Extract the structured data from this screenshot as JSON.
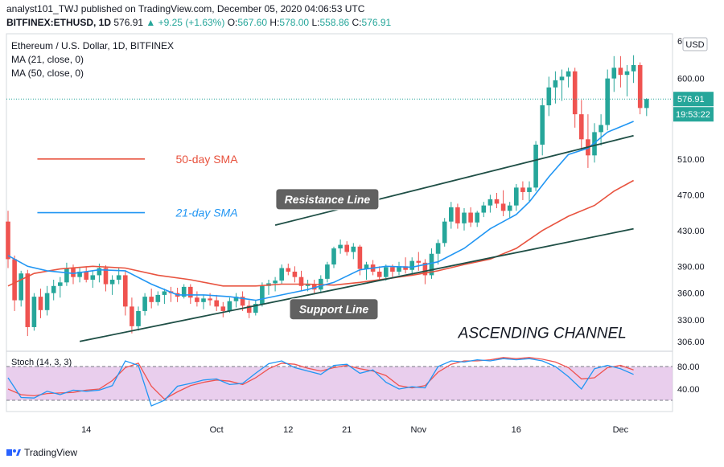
{
  "header": {
    "publisher_line": "analyst101_TWJ published on TradingView.com, December 05, 2020 04:06:53 UTC",
    "symbol": "BITFINEX:ETHUSD, 1D",
    "last": "576.91",
    "change": "▲ +9.25 (+1.63%)",
    "o_label": "O:",
    "o": "567.60",
    "h_label": "H:",
    "h": "578.00",
    "l_label": "L:",
    "l": "558.86",
    "c_label": "C:",
    "c": "576.91"
  },
  "legend": {
    "title": "Ethereum / U.S. Dollar, 1D, BITFINEX",
    "ma21": "MA (21, close, 0)",
    "ma50": "MA (50, close, 0)"
  },
  "currency": "USD",
  "price_label": "576.91",
  "countdown": "19:53:22",
  "stoch_label": "Stoch (14, 3, 3)",
  "brand": "TradingView",
  "colors": {
    "up": "#26a69a",
    "down": "#ef5350",
    "ma21": "#2196f3",
    "ma50": "#e8533f",
    "trend": "#1f4f46",
    "stoch_bg": "#e1bee7",
    "stoch_k": "#2196f3",
    "stoch_d": "#ef5350"
  },
  "chart_data": {
    "type": "candlestick",
    "yscale": "linear",
    "ylim": [
      295,
      650
    ],
    "y_ticks": [
      306,
      330,
      360,
      390,
      430,
      470,
      510,
      600
    ],
    "y_tick_labels": [
      "306.00",
      "330.00",
      "360.00",
      "390.00",
      "430.00",
      "470.00",
      "510.00",
      "600.00"
    ],
    "y_top_label": "6",
    "x_ticks": [
      {
        "index": 12,
        "label": "14"
      },
      {
        "index": 32,
        "label": "Oct"
      },
      {
        "index": 43,
        "label": "12"
      },
      {
        "index": 52,
        "label": "21"
      },
      {
        "index": 63,
        "label": "Nov"
      },
      {
        "index": 78,
        "label": "16"
      },
      {
        "index": 94,
        "label": "Dec"
      }
    ],
    "candles": [
      [
        440,
        452,
        388,
        398
      ],
      [
        398,
        402,
        340,
        352
      ],
      [
        352,
        385,
        345,
        382
      ],
      [
        382,
        386,
        312,
        322
      ],
      [
        322,
        360,
        318,
        356
      ],
      [
        356,
        365,
        332,
        341
      ],
      [
        341,
        368,
        335,
        360
      ],
      [
        360,
        375,
        352,
        368
      ],
      [
        368,
        378,
        355,
        372
      ],
      [
        372,
        394,
        368,
        388
      ],
      [
        388,
        392,
        370,
        378
      ],
      [
        378,
        388,
        372,
        384
      ],
      [
        384,
        390,
        372,
        375
      ],
      [
        375,
        385,
        366,
        380
      ],
      [
        380,
        393,
        372,
        388
      ],
      [
        388,
        391,
        362,
        370
      ],
      [
        370,
        380,
        358,
        375
      ],
      [
        375,
        388,
        370,
        380
      ],
      [
        380,
        385,
        335,
        345
      ],
      [
        345,
        355,
        315,
        323
      ],
      [
        323,
        345,
        318,
        340
      ],
      [
        340,
        360,
        335,
        356
      ],
      [
        356,
        365,
        343,
        350
      ],
      [
        350,
        362,
        346,
        358
      ],
      [
        358,
        365,
        348,
        362
      ],
      [
        362,
        367,
        350,
        360
      ],
      [
        360,
        366,
        350,
        356
      ],
      [
        356,
        370,
        354,
        367
      ],
      [
        367,
        370,
        348,
        355
      ],
      [
        355,
        362,
        345,
        350
      ],
      [
        350,
        358,
        342,
        354
      ],
      [
        354,
        360,
        346,
        352
      ],
      [
        352,
        358,
        340,
        345
      ],
      [
        345,
        350,
        333,
        340
      ],
      [
        340,
        355,
        338,
        351
      ],
      [
        351,
        360,
        344,
        356
      ],
      [
        356,
        362,
        340,
        346
      ],
      [
        346,
        352,
        332,
        338
      ],
      [
        338,
        352,
        335,
        348
      ],
      [
        348,
        372,
        345,
        368
      ],
      [
        368,
        375,
        358,
        371
      ],
      [
        371,
        378,
        362,
        374
      ],
      [
        374,
        392,
        370,
        388
      ],
      [
        388,
        393,
        380,
        384
      ],
      [
        384,
        390,
        372,
        378
      ],
      [
        378,
        385,
        362,
        368
      ],
      [
        368,
        375,
        362,
        370
      ],
      [
        370,
        375,
        360,
        364
      ],
      [
        364,
        380,
        360,
        376
      ],
      [
        376,
        395,
        372,
        392
      ],
      [
        392,
        412,
        388,
        410
      ],
      [
        410,
        420,
        404,
        414
      ],
      [
        414,
        418,
        402,
        406
      ],
      [
        406,
        416,
        398,
        412
      ],
      [
        412,
        414,
        380,
        387
      ],
      [
        387,
        395,
        375,
        392
      ],
      [
        392,
        397,
        380,
        384
      ],
      [
        384,
        390,
        374,
        378
      ],
      [
        378,
        392,
        374,
        389
      ],
      [
        389,
        392,
        378,
        384
      ],
      [
        384,
        395,
        380,
        390
      ],
      [
        390,
        400,
        382,
        386
      ],
      [
        386,
        400,
        380,
        396
      ],
      [
        396,
        406,
        385,
        394
      ],
      [
        394,
        398,
        370,
        380
      ],
      [
        380,
        410,
        376,
        404
      ],
      [
        404,
        420,
        392,
        416
      ],
      [
        416,
        444,
        412,
        440
      ],
      [
        440,
        462,
        432,
        456
      ],
      [
        456,
        460,
        432,
        438
      ],
      [
        438,
        455,
        430,
        450
      ],
      [
        450,
        456,
        434,
        439
      ],
      [
        439,
        452,
        434,
        450
      ],
      [
        450,
        462,
        445,
        458
      ],
      [
        458,
        470,
        450,
        465
      ],
      [
        465,
        472,
        455,
        460
      ],
      [
        460,
        475,
        446,
        452
      ],
      [
        452,
        462,
        444,
        458
      ],
      [
        458,
        482,
        452,
        478
      ],
      [
        478,
        485,
        464,
        473
      ],
      [
        473,
        485,
        462,
        478
      ],
      [
        478,
        530,
        474,
        526
      ],
      [
        526,
        578,
        514,
        570
      ],
      [
        570,
        602,
        558,
        590
      ],
      [
        590,
        608,
        572,
        598
      ],
      [
        598,
        610,
        575,
        602
      ],
      [
        602,
        612,
        590,
        608
      ],
      [
        608,
        612,
        545,
        560
      ],
      [
        560,
        576,
        520,
        532
      ],
      [
        532,
        560,
        500,
        514
      ],
      [
        514,
        550,
        506,
        540
      ],
      [
        540,
        560,
        525,
        548
      ],
      [
        548,
        610,
        542,
        600
      ],
      [
        600,
        625,
        585,
        612
      ],
      [
        612,
        625,
        590,
        604
      ],
      [
        604,
        615,
        580,
        608
      ],
      [
        608,
        626,
        595,
        615
      ],
      [
        615,
        618,
        560,
        567
      ],
      [
        567,
        578,
        558,
        577
      ]
    ],
    "ma21": [
      [
        0,
        402
      ],
      [
        3,
        390
      ],
      [
        6,
        385
      ],
      [
        10,
        382
      ],
      [
        14,
        386
      ],
      [
        18,
        385
      ],
      [
        22,
        370
      ],
      [
        26,
        358
      ],
      [
        30,
        358
      ],
      [
        34,
        356
      ],
      [
        38,
        352
      ],
      [
        42,
        358
      ],
      [
        46,
        364
      ],
      [
        50,
        372
      ],
      [
        54,
        386
      ],
      [
        58,
        390
      ],
      [
        62,
        389
      ],
      [
        66,
        395
      ],
      [
        70,
        410
      ],
      [
        74,
        432
      ],
      [
        78,
        448
      ],
      [
        80,
        462
      ],
      [
        83,
        490
      ],
      [
        86,
        515
      ],
      [
        89,
        522
      ],
      [
        92,
        540
      ],
      [
        96,
        552
      ]
    ],
    "ma50": [
      [
        0,
        368
      ],
      [
        4,
        382
      ],
      [
        8,
        387
      ],
      [
        13,
        390
      ],
      [
        18,
        388
      ],
      [
        23,
        380
      ],
      [
        28,
        375
      ],
      [
        33,
        368
      ],
      [
        38,
        368
      ],
      [
        42,
        370
      ],
      [
        46,
        370
      ],
      [
        50,
        369
      ],
      [
        54,
        372
      ],
      [
        58,
        376
      ],
      [
        62,
        380
      ],
      [
        66,
        385
      ],
      [
        70,
        392
      ],
      [
        74,
        398
      ],
      [
        78,
        410
      ],
      [
        82,
        430
      ],
      [
        86,
        446
      ],
      [
        90,
        458
      ],
      [
        93,
        474
      ],
      [
        96,
        486
      ]
    ],
    "resistance_line": [
      [
        41,
        436
      ],
      [
        96,
        536
      ]
    ],
    "support_line": [
      [
        11,
        306
      ],
      [
        96,
        432
      ]
    ],
    "annotations": [
      {
        "text": "Resistance Line",
        "index": 49,
        "price": 465
      },
      {
        "text": "Support Line",
        "index": 50,
        "price": 342
      },
      {
        "text": "ASCENDING CHANNEL",
        "index": 82,
        "price": 310
      },
      {
        "text": "50-day SMA",
        "index": 30.5,
        "price": 510
      },
      {
        "text": "21-day SMA",
        "index": 30.5,
        "price": 450
      }
    ],
    "sma_legend": [
      {
        "label": "50-day SMA",
        "series": "ma50",
        "from": [
          4.5,
          510
        ],
        "to": [
          21,
          510
        ]
      },
      {
        "label": "21-day SMA",
        "series": "ma21",
        "from": [
          4.5,
          450
        ],
        "to": [
          21,
          450
        ]
      }
    ],
    "stoch": {
      "ylim": [
        0,
        100
      ],
      "band": [
        20,
        80
      ],
      "y_tick_labels": [
        "80.00",
        "40.00"
      ],
      "y_ticks": [
        80,
        40
      ],
      "k": [
        [
          0,
          60
        ],
        [
          2,
          25
        ],
        [
          4,
          24
        ],
        [
          6,
          36
        ],
        [
          8,
          30
        ],
        [
          10,
          38
        ],
        [
          12,
          36
        ],
        [
          14,
          38
        ],
        [
          16,
          46
        ],
        [
          18,
          90
        ],
        [
          20,
          82
        ],
        [
          22,
          10
        ],
        [
          24,
          20
        ],
        [
          26,
          45
        ],
        [
          28,
          50
        ],
        [
          30,
          56
        ],
        [
          32,
          58
        ],
        [
          34,
          48
        ],
        [
          36,
          50
        ],
        [
          38,
          68
        ],
        [
          40,
          85
        ],
        [
          42,
          90
        ],
        [
          44,
          78
        ],
        [
          46,
          72
        ],
        [
          48,
          66
        ],
        [
          50,
          82
        ],
        [
          52,
          84
        ],
        [
          54,
          68
        ],
        [
          56,
          74
        ],
        [
          58,
          52
        ],
        [
          60,
          40
        ],
        [
          62,
          44
        ],
        [
          64,
          42
        ],
        [
          66,
          80
        ],
        [
          68,
          90
        ],
        [
          70,
          88
        ],
        [
          72,
          92
        ],
        [
          74,
          90
        ],
        [
          76,
          94
        ],
        [
          78,
          92
        ],
        [
          80,
          94
        ],
        [
          82,
          90
        ],
        [
          84,
          80
        ],
        [
          86,
          62
        ],
        [
          88,
          40
        ],
        [
          90,
          76
        ],
        [
          92,
          82
        ],
        [
          94,
          76
        ],
        [
          96,
          66
        ]
      ],
      "d": [
        [
          0,
          40
        ],
        [
          2,
          30
        ],
        [
          4,
          28
        ],
        [
          6,
          32
        ],
        [
          8,
          33
        ],
        [
          10,
          34
        ],
        [
          12,
          38
        ],
        [
          14,
          40
        ],
        [
          16,
          55
        ],
        [
          18,
          78
        ],
        [
          20,
          86
        ],
        [
          22,
          45
        ],
        [
          24,
          22
        ],
        [
          26,
          35
        ],
        [
          28,
          46
        ],
        [
          30,
          52
        ],
        [
          32,
          56
        ],
        [
          34,
          54
        ],
        [
          36,
          48
        ],
        [
          38,
          60
        ],
        [
          40,
          76
        ],
        [
          42,
          86
        ],
        [
          44,
          84
        ],
        [
          46,
          77
        ],
        [
          48,
          72
        ],
        [
          50,
          78
        ],
        [
          52,
          82
        ],
        [
          54,
          76
        ],
        [
          56,
          72
        ],
        [
          58,
          64
        ],
        [
          60,
          46
        ],
        [
          62,
          42
        ],
        [
          64,
          46
        ],
        [
          66,
          70
        ],
        [
          68,
          84
        ],
        [
          70,
          90
        ],
        [
          72,
          90
        ],
        [
          74,
          92
        ],
        [
          76,
          96
        ],
        [
          78,
          94
        ],
        [
          80,
          96
        ],
        [
          82,
          93
        ],
        [
          84,
          88
        ],
        [
          86,
          78
        ],
        [
          88,
          58
        ],
        [
          90,
          60
        ],
        [
          92,
          78
        ],
        [
          94,
          82
        ],
        [
          96,
          74
        ]
      ]
    }
  }
}
